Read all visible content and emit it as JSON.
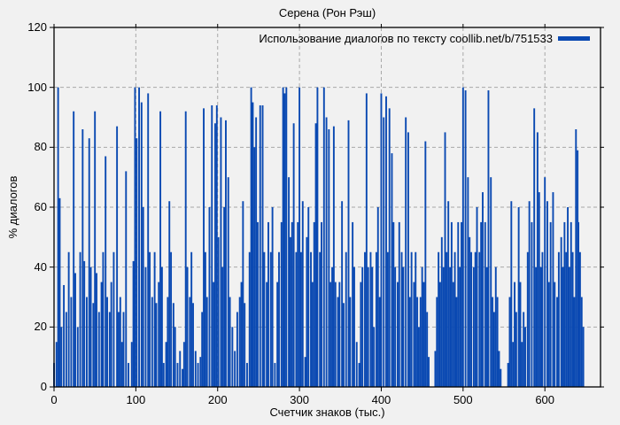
{
  "title": "Серена (Рон Рэш)",
  "legend": {
    "label": "Использование диалогов по тексту coollib.net/b/751533"
  },
  "colors": {
    "background": "#f1f1f1",
    "bar": "#0a49b2",
    "grid": "#a8a8a8",
    "axis": "#000000",
    "text": "#000000"
  },
  "chart_data": {
    "type": "bar",
    "style": "impulses",
    "title": "Серена (Рон Рэш)",
    "xlabel": "Счетчик знаков (тыс.)",
    "ylabel": "% диалогов",
    "legend_label": "Использование диалогов по тексту coollib.net/b/751533",
    "legend_position": "top-right-inside",
    "grid": true,
    "xlim": [
      0,
      668
    ],
    "ylim": [
      0,
      120
    ],
    "xticks": [
      0,
      100,
      200,
      300,
      400,
      500,
      600
    ],
    "yticks": [
      0,
      20,
      40,
      60,
      80,
      100,
      120
    ],
    "points": [
      [
        0,
        8
      ],
      [
        3,
        15
      ],
      [
        5,
        100
      ],
      [
        7,
        63
      ],
      [
        9,
        20
      ],
      [
        12,
        34
      ],
      [
        15,
        25
      ],
      [
        18,
        45
      ],
      [
        21,
        30
      ],
      [
        24,
        92
      ],
      [
        26,
        38
      ],
      [
        29,
        20
      ],
      [
        32,
        45
      ],
      [
        35,
        86
      ],
      [
        37,
        42
      ],
      [
        40,
        30
      ],
      [
        43,
        83
      ],
      [
        45,
        40
      ],
      [
        48,
        28
      ],
      [
        50,
        92
      ],
      [
        52,
        38
      ],
      [
        55,
        25
      ],
      [
        58,
        35
      ],
      [
        60,
        45
      ],
      [
        63,
        77
      ],
      [
        65,
        30
      ],
      [
        68,
        25
      ],
      [
        70,
        35
      ],
      [
        73,
        45
      ],
      [
        77,
        87
      ],
      [
        79,
        25
      ],
      [
        81,
        30
      ],
      [
        83,
        15
      ],
      [
        85,
        25
      ],
      [
        88,
        72
      ],
      [
        91,
        8
      ],
      [
        95,
        15
      ],
      [
        97,
        42
      ],
      [
        99,
        100
      ],
      [
        101,
        83
      ],
      [
        104,
        100
      ],
      [
        107,
        95
      ],
      [
        109,
        60
      ],
      [
        112,
        40
      ],
      [
        115,
        98
      ],
      [
        117,
        45
      ],
      [
        120,
        30
      ],
      [
        123,
        45
      ],
      [
        125,
        28
      ],
      [
        128,
        35
      ],
      [
        130,
        92
      ],
      [
        132,
        40
      ],
      [
        134,
        8
      ],
      [
        137,
        15
      ],
      [
        139,
        30
      ],
      [
        141,
        62
      ],
      [
        143,
        45
      ],
      [
        146,
        28
      ],
      [
        148,
        20
      ],
      [
        151,
        8
      ],
      [
        154,
        12
      ],
      [
        157,
        6
      ],
      [
        159,
        15
      ],
      [
        161,
        92
      ],
      [
        163,
        40
      ],
      [
        166,
        30
      ],
      [
        168,
        45
      ],
      [
        170,
        28
      ],
      [
        173,
        12
      ],
      [
        176,
        8
      ],
      [
        179,
        10
      ],
      [
        181,
        25
      ],
      [
        183,
        93
      ],
      [
        185,
        45
      ],
      [
        187,
        30
      ],
      [
        190,
        60
      ],
      [
        193,
        94
      ],
      [
        195,
        35
      ],
      [
        197,
        88
      ],
      [
        199,
        94
      ],
      [
        201,
        50
      ],
      [
        204,
        90
      ],
      [
        206,
        40
      ],
      [
        208,
        60
      ],
      [
        210,
        89
      ],
      [
        213,
        70
      ],
      [
        215,
        30
      ],
      [
        218,
        20
      ],
      [
        221,
        12
      ],
      [
        224,
        25
      ],
      [
        227,
        30
      ],
      [
        229,
        35
      ],
      [
        231,
        62
      ],
      [
        233,
        28
      ],
      [
        236,
        8
      ],
      [
        239,
        45
      ],
      [
        241,
        100
      ],
      [
        243,
        95
      ],
      [
        245,
        80
      ],
      [
        247,
        90
      ],
      [
        249,
        55
      ],
      [
        252,
        94
      ],
      [
        255,
        94
      ],
      [
        257,
        45
      ],
      [
        260,
        35
      ],
      [
        262,
        55
      ],
      [
        265,
        45
      ],
      [
        267,
        60
      ],
      [
        270,
        8
      ],
      [
        273,
        35
      ],
      [
        275,
        45
      ],
      [
        278,
        55
      ],
      [
        280,
        100
      ],
      [
        282,
        98
      ],
      [
        284,
        100
      ],
      [
        287,
        70
      ],
      [
        289,
        50
      ],
      [
        291,
        55
      ],
      [
        293,
        88
      ],
      [
        296,
        45
      ],
      [
        298,
        55
      ],
      [
        300,
        100
      ],
      [
        302,
        45
      ],
      [
        304,
        62
      ],
      [
        307,
        10
      ],
      [
        309,
        50
      ],
      [
        311,
        60
      ],
      [
        314,
        45
      ],
      [
        316,
        35
      ],
      [
        318,
        55
      ],
      [
        320,
        88
      ],
      [
        322,
        100
      ],
      [
        325,
        45
      ],
      [
        327,
        55
      ],
      [
        330,
        100
      ],
      [
        333,
        90
      ],
      [
        336,
        86
      ],
      [
        338,
        35
      ],
      [
        340,
        40
      ],
      [
        342,
        87
      ],
      [
        344,
        35
      ],
      [
        347,
        30
      ],
      [
        349,
        35
      ],
      [
        352,
        62
      ],
      [
        354,
        28
      ],
      [
        357,
        45
      ],
      [
        360,
        89
      ],
      [
        362,
        30
      ],
      [
        365,
        55
      ],
      [
        367,
        40
      ],
      [
        370,
        15
      ],
      [
        373,
        8
      ],
      [
        375,
        35
      ],
      [
        377,
        40
      ],
      [
        380,
        45
      ],
      [
        382,
        98
      ],
      [
        384,
        40
      ],
      [
        387,
        45
      ],
      [
        389,
        40
      ],
      [
        391,
        20
      ],
      [
        394,
        45
      ],
      [
        396,
        60
      ],
      [
        398,
        30
      ],
      [
        400,
        98
      ],
      [
        403,
        90
      ],
      [
        406,
        97
      ],
      [
        408,
        45
      ],
      [
        410,
        93
      ],
      [
        413,
        78
      ],
      [
        415,
        55
      ],
      [
        417,
        40
      ],
      [
        420,
        35
      ],
      [
        422,
        55
      ],
      [
        425,
        45
      ],
      [
        427,
        40
      ],
      [
        430,
        90
      ],
      [
        433,
        85
      ],
      [
        435,
        30
      ],
      [
        437,
        45
      ],
      [
        440,
        35
      ],
      [
        442,
        45
      ],
      [
        444,
        30
      ],
      [
        446,
        20
      ],
      [
        448,
        30
      ],
      [
        450,
        40
      ],
      [
        452,
        35
      ],
      [
        454,
        82
      ],
      [
        456,
        25
      ],
      [
        458,
        10
      ],
      [
        466,
        12
      ],
      [
        468,
        30
      ],
      [
        470,
        45
      ],
      [
        472,
        35
      ],
      [
        474,
        50
      ],
      [
        476,
        40
      ],
      [
        478,
        85
      ],
      [
        480,
        45
      ],
      [
        482,
        62
      ],
      [
        484,
        40
      ],
      [
        486,
        55
      ],
      [
        488,
        35
      ],
      [
        490,
        45
      ],
      [
        492,
        30
      ],
      [
        494,
        55
      ],
      [
        496,
        40
      ],
      [
        498,
        55
      ],
      [
        500,
        100
      ],
      [
        503,
        99
      ],
      [
        506,
        70
      ],
      [
        508,
        50
      ],
      [
        510,
        45
      ],
      [
        513,
        40
      ],
      [
        515,
        45
      ],
      [
        517,
        60
      ],
      [
        520,
        45
      ],
      [
        522,
        55
      ],
      [
        524,
        65
      ],
      [
        527,
        55
      ],
      [
        529,
        40
      ],
      [
        531,
        99
      ],
      [
        534,
        70
      ],
      [
        536,
        30
      ],
      [
        538,
        25
      ],
      [
        540,
        40
      ],
      [
        542,
        30
      ],
      [
        544,
        12
      ],
      [
        546,
        6
      ],
      [
        555,
        8
      ],
      [
        557,
        30
      ],
      [
        559,
        62
      ],
      [
        561,
        15
      ],
      [
        563,
        35
      ],
      [
        565,
        25
      ],
      [
        568,
        60
      ],
      [
        570,
        35
      ],
      [
        572,
        15
      ],
      [
        574,
        25
      ],
      [
        576,
        20
      ],
      [
        579,
        45
      ],
      [
        581,
        62
      ],
      [
        584,
        55
      ],
      [
        587,
        93
      ],
      [
        589,
        40
      ],
      [
        591,
        85
      ],
      [
        593,
        65
      ],
      [
        595,
        40
      ],
      [
        597,
        45
      ],
      [
        600,
        70
      ],
      [
        603,
        62
      ],
      [
        605,
        35
      ],
      [
        607,
        55
      ],
      [
        610,
        65
      ],
      [
        612,
        35
      ],
      [
        615,
        30
      ],
      [
        617,
        45
      ],
      [
        620,
        50
      ],
      [
        622,
        40
      ],
      [
        624,
        55
      ],
      [
        626,
        45
      ],
      [
        628,
        60
      ],
      [
        630,
        40
      ],
      [
        632,
        55
      ],
      [
        634,
        45
      ],
      [
        636,
        30
      ],
      [
        638,
        86
      ],
      [
        640,
        79
      ],
      [
        641,
        55
      ],
      [
        643,
        45
      ],
      [
        645,
        30
      ],
      [
        647,
        20
      ]
    ]
  }
}
